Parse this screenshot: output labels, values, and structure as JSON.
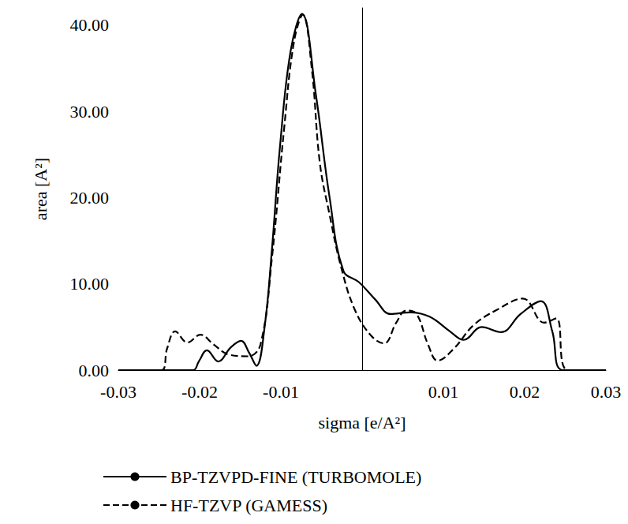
{
  "chart_data": {
    "type": "line",
    "x_label": "sigma [e/A²]",
    "y_label": "area [A²]",
    "xlim": [
      -0.03,
      0.03
    ],
    "xticks": [
      -0.03,
      -0.02,
      -0.01,
      0.01,
      0.02,
      0.03
    ],
    "ylim": [
      0,
      42
    ],
    "yticks": [
      {
        "value": 0,
        "label": "0.00"
      },
      {
        "value": 10,
        "label": "10.00"
      },
      {
        "value": 20,
        "label": "20.00"
      },
      {
        "value": 30,
        "label": "30.00"
      },
      {
        "value": 40,
        "label": "40.00"
      }
    ],
    "grid": false,
    "legend": "bottom",
    "series": [
      {
        "name": "BP-TZVPD-FINE (TURBOMOLE)",
        "color": "#000000",
        "line_style": "solid",
        "x": [
          -0.03,
          -0.0208,
          -0.0201,
          -0.0191,
          -0.0177,
          -0.0162,
          -0.0149,
          -0.0139,
          -0.013,
          -0.012,
          -0.0111,
          -0.0101,
          -0.0088,
          -0.0074,
          -0.0057,
          -0.004,
          -0.0023,
          -0.0004,
          0.0016,
          0.0035,
          0.0059,
          0.0083,
          0.0108,
          0.0125,
          0.0147,
          0.0171,
          0.0195,
          0.022,
          0.0234,
          0.0247,
          0.03
        ],
        "values": [
          0,
          0,
          1.0,
          2.3,
          1.0,
          2.6,
          3.4,
          2.0,
          0.5,
          5,
          14,
          26,
          37,
          41.3,
          32,
          20,
          11.5,
          10.2,
          8.2,
          6.5,
          6.7,
          6.2,
          4.5,
          3.5,
          5.0,
          4.4,
          6.5,
          8.0,
          4.5,
          0,
          0
        ]
      },
      {
        "name": "HF-TZVP (GAMESS)",
        "color": "#000000",
        "line_style": "dashed",
        "x": [
          -0.03,
          -0.0247,
          -0.024,
          -0.023,
          -0.0215,
          -0.0199,
          -0.0183,
          -0.0164,
          -0.014,
          -0.0125,
          -0.0111,
          -0.0096,
          -0.0084,
          -0.0073,
          -0.0062,
          -0.0052,
          -0.004,
          -0.0026,
          -0.0009,
          0.0011,
          0.0027,
          0.0042,
          0.0054,
          0.0067,
          0.0081,
          0.0093,
          0.0113,
          0.0137,
          0.0166,
          0.0198,
          0.0224,
          0.0239,
          0.0253,
          0.03
        ],
        "values": [
          0,
          0,
          2.5,
          4.5,
          3.2,
          4.1,
          3.0,
          1.8,
          1.6,
          3,
          13,
          28,
          38,
          41.2,
          35,
          24,
          18,
          12,
          7,
          4,
          3.1,
          5.5,
          6.9,
          6.5,
          3,
          1.1,
          2.5,
          5.2,
          7,
          8.3,
          5.5,
          6.0,
          0,
          0
        ]
      }
    ]
  }
}
